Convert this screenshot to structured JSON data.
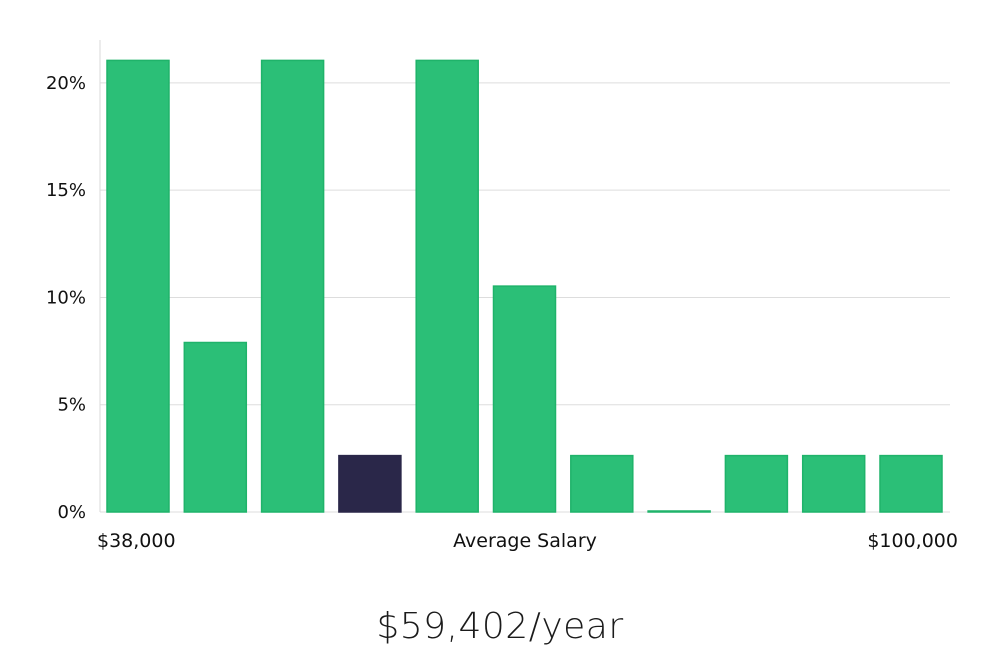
{
  "chart_data": {
    "type": "bar",
    "title": "",
    "xlabel": "Average Salary",
    "ylabel": "",
    "x_range_labels": {
      "min": "$38,000",
      "max": "$100,000"
    },
    "values": [
      21.05,
      7.9,
      21.05,
      2.63,
      21.05,
      10.53,
      2.63,
      0,
      2.63,
      2.63,
      2.63
    ],
    "highlight_index": 3,
    "ylim": [
      0,
      22
    ],
    "yticks": [
      0,
      5,
      10,
      15,
      20
    ],
    "ytick_labels": [
      "0%",
      "5%",
      "10%",
      "15%",
      "20%"
    ],
    "grid": true,
    "colors": {
      "bar": "#2bbf77",
      "bar_border": "#1fb36a",
      "highlight": "#2a2749",
      "grid": "#dddddd",
      "axis": "#d9d9d9"
    }
  },
  "summary": {
    "salary_text": "$59,402/year"
  }
}
